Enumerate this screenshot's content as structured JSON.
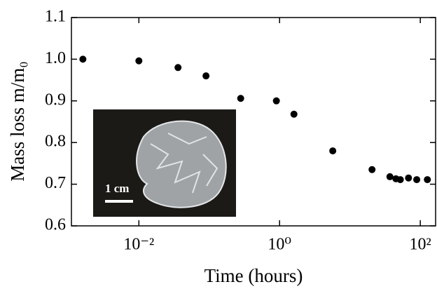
{
  "chart_data": {
    "type": "scatter",
    "xlabel": "Time (hours)",
    "ylabel": "Mass loss m/m₀",
    "annotation": "1 cm",
    "xscale": "log",
    "color": "#000000",
    "x": [
      0.0016,
      0.01,
      0.036,
      0.09,
      0.28,
      0.9,
      1.6,
      5.7,
      20.6,
      37,
      45,
      52,
      68,
      89,
      126
    ],
    "values": [
      1.0,
      0.996,
      0.98,
      0.96,
      0.906,
      0.9,
      0.868,
      0.78,
      0.735,
      0.718,
      0.713,
      0.711,
      0.715,
      0.711,
      0.711
    ],
    "xlim": [
      0.0011,
      165
    ],
    "ylim": [
      0.6,
      1.1
    ],
    "xticks": [
      {
        "value": 0.01,
        "label": "10⁻²"
      },
      {
        "value": 1,
        "label": "10⁰"
      },
      {
        "value": 100,
        "label": "10²"
      }
    ],
    "yticks": [
      {
        "value": 0.6,
        "label": "0.6"
      },
      {
        "value": 0.7,
        "label": "0.7"
      },
      {
        "value": 0.8,
        "label": "0.8"
      },
      {
        "value": 0.9,
        "label": "0.9"
      },
      {
        "value": 1.0,
        "label": "1.0"
      },
      {
        "value": 1.1,
        "label": "1.1"
      }
    ]
  }
}
